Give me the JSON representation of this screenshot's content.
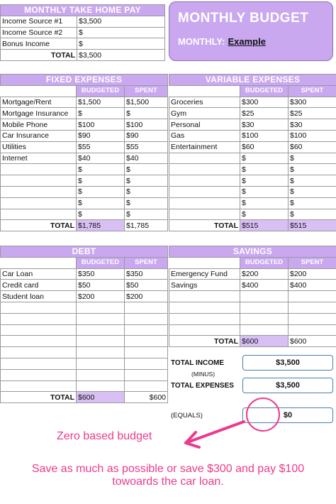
{
  "take_home": {
    "title": "MONTHLY TAKE HOME PAY",
    "rows": [
      {
        "label": "Income Source #1",
        "value": "$3,500"
      },
      {
        "label": "Income Source #2",
        "value": "$"
      },
      {
        "label": "Bonus Income",
        "value": "$"
      }
    ],
    "total_label": "TOTAL",
    "total_value": "$3,500"
  },
  "budget_box": {
    "title": "MONTHLY BUDGET",
    "monthly_label": "MONTHLY:",
    "monthly_value": "Example"
  },
  "columns": {
    "budgeted": "BUDGETED",
    "spent": "SPENT"
  },
  "fixed": {
    "title": "FIXED EXPENSES",
    "rows": [
      {
        "label": "Mortgage/Rent",
        "budgeted": "$1,500",
        "spent": "$1,500"
      },
      {
        "label": "Mortgage Insurance",
        "budgeted": "$",
        "spent": "$"
      },
      {
        "label": "Mobile Phone",
        "budgeted": "$100",
        "spent": "$100"
      },
      {
        "label": "Car Insurance",
        "budgeted": "$90",
        "spent": "$90"
      },
      {
        "label": "Utilities",
        "budgeted": "$55",
        "spent": "$55"
      },
      {
        "label": "Internet",
        "budgeted": "$40",
        "spent": "$40"
      },
      {
        "label": "",
        "budgeted": "$",
        "spent": "$"
      },
      {
        "label": "",
        "budgeted": "$",
        "spent": "$"
      },
      {
        "label": "",
        "budgeted": "$",
        "spent": "$"
      },
      {
        "label": "",
        "budgeted": "$",
        "spent": "$"
      },
      {
        "label": "",
        "budgeted": "$",
        "spent": "$"
      }
    ],
    "total_label": "TOTAL",
    "total_budgeted": "$1,785",
    "total_spent": "$1,785"
  },
  "variable": {
    "title": "VARIABLE EXPENSES",
    "rows": [
      {
        "label": "Groceries",
        "budgeted": "$300",
        "spent": "$300"
      },
      {
        "label": "Gym",
        "budgeted": "$25",
        "spent": "$25"
      },
      {
        "label": "Personal",
        "budgeted": "$30",
        "spent": "$30"
      },
      {
        "label": "Gas",
        "budgeted": "$100",
        "spent": "$100"
      },
      {
        "label": "Entertainment",
        "budgeted": "$60",
        "spent": "$60"
      },
      {
        "label": "",
        "budgeted": "$",
        "spent": "$"
      },
      {
        "label": "",
        "budgeted": "$",
        "spent": "$"
      },
      {
        "label": "",
        "budgeted": "$",
        "spent": "$"
      },
      {
        "label": "",
        "budgeted": "$",
        "spent": "$"
      },
      {
        "label": "",
        "budgeted": "$",
        "spent": "$"
      },
      {
        "label": "",
        "budgeted": "$",
        "spent": "$"
      }
    ],
    "total_label": "TOTAL",
    "total_budgeted": "$515",
    "total_spent": "$515"
  },
  "debt": {
    "title": "DEBT",
    "rows": [
      {
        "label": "Car Loan",
        "budgeted": "$350",
        "spent": "$350"
      },
      {
        "label": "Credit card",
        "budgeted": "$50",
        "spent": "$50"
      },
      {
        "label": "Student loan",
        "budgeted": "$200",
        "spent": "$200"
      },
      {
        "label": "",
        "budgeted": "",
        "spent": ""
      },
      {
        "label": "",
        "budgeted": "",
        "spent": ""
      },
      {
        "label": "",
        "budgeted": "",
        "spent": ""
      },
      {
        "label": "",
        "budgeted": "",
        "spent": ""
      },
      {
        "label": "",
        "budgeted": "",
        "spent": ""
      },
      {
        "label": "",
        "budgeted": "",
        "spent": ""
      },
      {
        "label": "",
        "budgeted": "",
        "spent": ""
      },
      {
        "label": "",
        "budgeted": "",
        "spent": ""
      }
    ],
    "total_label": "TOTAL",
    "total_budgeted": "$600",
    "total_spent": "$600"
  },
  "savings": {
    "title": "SAVINGS",
    "rows": [
      {
        "label": "Emergency Fund",
        "budgeted": "$200",
        "spent": "$200"
      },
      {
        "label": "Savings",
        "budgeted": "$400",
        "spent": "$400"
      },
      {
        "label": "",
        "budgeted": "",
        "spent": ""
      },
      {
        "label": "",
        "budgeted": "",
        "spent": ""
      },
      {
        "label": "",
        "budgeted": "",
        "spent": ""
      },
      {
        "label": "",
        "budgeted": "",
        "spent": ""
      }
    ],
    "total_label": "TOTAL",
    "total_budgeted": "$600",
    "total_spent": "$600"
  },
  "summary": {
    "total_income_label": "TOTAL INCOME",
    "total_income": "$3,500",
    "minus_label": "(MINUS)",
    "total_expenses_label": "TOTAL EXPENSES",
    "total_expenses": "$3,500",
    "equals_label": "(EQUALS)",
    "equals_value": "$0"
  },
  "annotations": {
    "zero_based": "Zero based budget",
    "advice_line1": "Save as much as possible or save $300 and pay $100",
    "advice_line2": "towoards the car loan.",
    "highlight_color": "#ec3a8c",
    "accent_color": "#c9a8f0"
  }
}
